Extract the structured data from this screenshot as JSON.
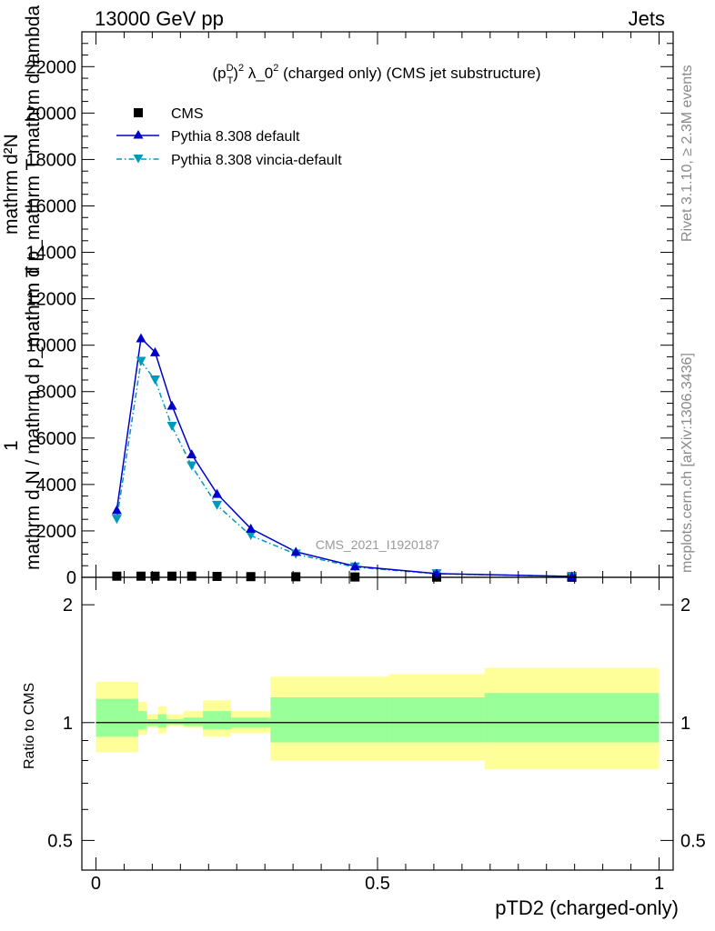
{
  "header": {
    "left": "13000 GeV pp",
    "right": "Jets"
  },
  "side_labels": {
    "rivet": "Rivet 3.1.10, ≥ 2.3M events",
    "mcplots": "mcplots.cern.ch [arXiv:1306.3436]"
  },
  "chart_data": {
    "type": "line",
    "title": "(p_T^D)^2 λ_0^2 (charged only) (CMS jet substructure)",
    "title_parts": {
      "base": "(p",
      "sup1": "D",
      "sub1": "T",
      "close": ")",
      "sup2": "2",
      "mid": " λ_0",
      "sup3": "2",
      "tail": " (charged only) (CMS jet substructure)"
    },
    "analysis_label": "CMS_2021_I1920187",
    "xlabel": "pTD2 (charged-only)",
    "ylabel_main_top": "mathrm d²N",
    "ylabel_main_top2": "mathrm d p_mathrm T mathrm d lambda",
    "ylabel_main_one": "1",
    "ylabel_main_bottom": "mathrm d N / mathrm d p_mathrm T",
    "ylabel_ratio": "Ratio to CMS",
    "xlim": [
      -0.025,
      1.025
    ],
    "ylim_main": [
      0,
      23500
    ],
    "ylim_ratio": [
      0.42,
      2.35
    ],
    "main_yticks": [
      {
        "v": 0,
        "label": "0"
      },
      {
        "v": 2000,
        "label": "2000"
      },
      {
        "v": 4000,
        "label": "4000"
      },
      {
        "v": 6000,
        "label": "6000"
      },
      {
        "v": 8000,
        "label": "8000"
      },
      {
        "v": 10000,
        "label": "10000"
      },
      {
        "v": 12000,
        "label": "12000"
      },
      {
        "v": 14000,
        "label": "14000"
      },
      {
        "v": 16000,
        "label": "16000"
      },
      {
        "v": 18000,
        "label": "18000"
      },
      {
        "v": 20000,
        "label": "20000"
      },
      {
        "v": 22000,
        "label": "22000"
      }
    ],
    "ratio_yticks": [
      {
        "v": 0.5,
        "label": "0.5"
      },
      {
        "v": 1,
        "label": "1"
      },
      {
        "v": 2,
        "label": "2"
      }
    ],
    "xticks": [
      {
        "v": 0,
        "label": "0"
      },
      {
        "v": 0.5,
        "label": "0.5"
      },
      {
        "v": 1,
        "label": "1"
      }
    ],
    "legend": [
      "CMS",
      "Pythia 8.308 default",
      "Pythia 8.308 vincia-default"
    ],
    "bin_edges": [
      0,
      0.075,
      0.09,
      0.11,
      0.125,
      0.155,
      0.19,
      0.24,
      0.31,
      0.52,
      0.69,
      1.0
    ],
    "series": [
      {
        "name": "CMS",
        "color": "#000000",
        "x": [
          0.037,
          0.08,
          0.105,
          0.135,
          0.17,
          0.215,
          0.275,
          0.355,
          0.46,
          0.605,
          0.845
        ],
        "y": [
          50,
          50,
          50,
          50,
          50,
          40,
          30,
          25,
          15,
          10,
          5
        ]
      },
      {
        "name": "Pythia 8.308 default",
        "color": "#0000cc",
        "x": [
          0.037,
          0.08,
          0.105,
          0.135,
          0.17,
          0.215,
          0.275,
          0.355,
          0.46,
          0.605,
          0.845
        ],
        "y": [
          2900,
          10300,
          9700,
          7400,
          5300,
          3600,
          2100,
          1100,
          480,
          160,
          40
        ]
      },
      {
        "name": "Pythia 8.308 vincia-default",
        "color": "#0099bb",
        "x": [
          0.037,
          0.08,
          0.105,
          0.135,
          0.17,
          0.215,
          0.275,
          0.355,
          0.46,
          0.605,
          0.845
        ],
        "y": [
          2500,
          9300,
          8500,
          6500,
          4800,
          3100,
          1800,
          1000,
          440,
          150,
          40
        ]
      }
    ],
    "ratio_bands": {
      "outer_color": "#ffff99",
      "inner_color": "#99ff99",
      "outer": [
        [
          0.84,
          1.27
        ],
        [
          0.93,
          1.13
        ],
        [
          0.97,
          1.05
        ],
        [
          0.94,
          1.1
        ],
        [
          0.98,
          1.05
        ],
        [
          0.97,
          1.07
        ],
        [
          0.92,
          1.14
        ],
        [
          0.94,
          1.07
        ],
        [
          0.8,
          1.31
        ],
        [
          0.8,
          1.33
        ],
        [
          0.76,
          1.38
        ]
      ],
      "inner": [
        [
          0.92,
          1.15
        ],
        [
          0.96,
          1.07
        ],
        [
          0.98,
          1.02
        ],
        [
          0.97,
          1.05
        ],
        [
          0.99,
          1.02
        ],
        [
          0.98,
          1.03
        ],
        [
          0.96,
          1.07
        ],
        [
          0.97,
          1.03
        ],
        [
          0.89,
          1.16
        ],
        [
          0.89,
          1.16
        ],
        [
          0.89,
          1.19
        ]
      ]
    }
  }
}
